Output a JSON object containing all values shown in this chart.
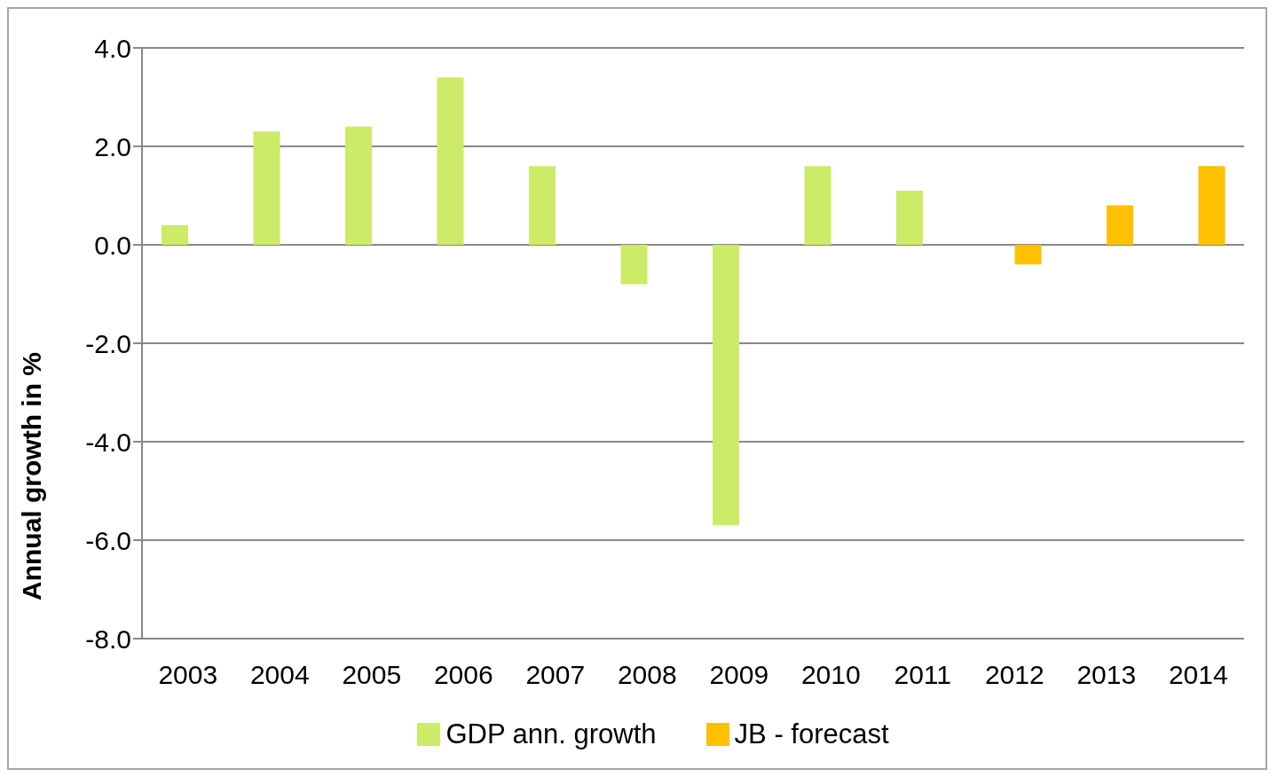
{
  "chart_data": {
    "type": "bar",
    "ylabel": "Annual growth in %",
    "categories": [
      "2003",
      "2004",
      "2005",
      "2006",
      "2007",
      "2008",
      "2009",
      "2010",
      "2011",
      "2012",
      "2013",
      "2014"
    ],
    "series": [
      {
        "name": "GDP ann. growth",
        "color": "#cceb66",
        "values": [
          0.4,
          2.3,
          2.4,
          3.4,
          1.6,
          -0.8,
          -5.7,
          1.6,
          1.1,
          null,
          null,
          null
        ]
      },
      {
        "name": "JB - forecast",
        "color": "#ffc000",
        "values": [
          null,
          null,
          null,
          null,
          null,
          null,
          null,
          null,
          null,
          -0.4,
          0.8,
          1.6
        ]
      }
    ],
    "ylim": [
      -8,
      4
    ],
    "yticks": [
      {
        "value": -8,
        "label": "-8.0"
      },
      {
        "value": -6,
        "label": "-6.0"
      },
      {
        "value": -4,
        "label": "-4.0"
      },
      {
        "value": -2,
        "label": "-2.0"
      },
      {
        "value": 0,
        "label": "0.0"
      },
      {
        "value": 2,
        "label": "2.0"
      },
      {
        "value": 4,
        "label": "4.0"
      }
    ],
    "grid": "y",
    "legend": "bottom"
  }
}
